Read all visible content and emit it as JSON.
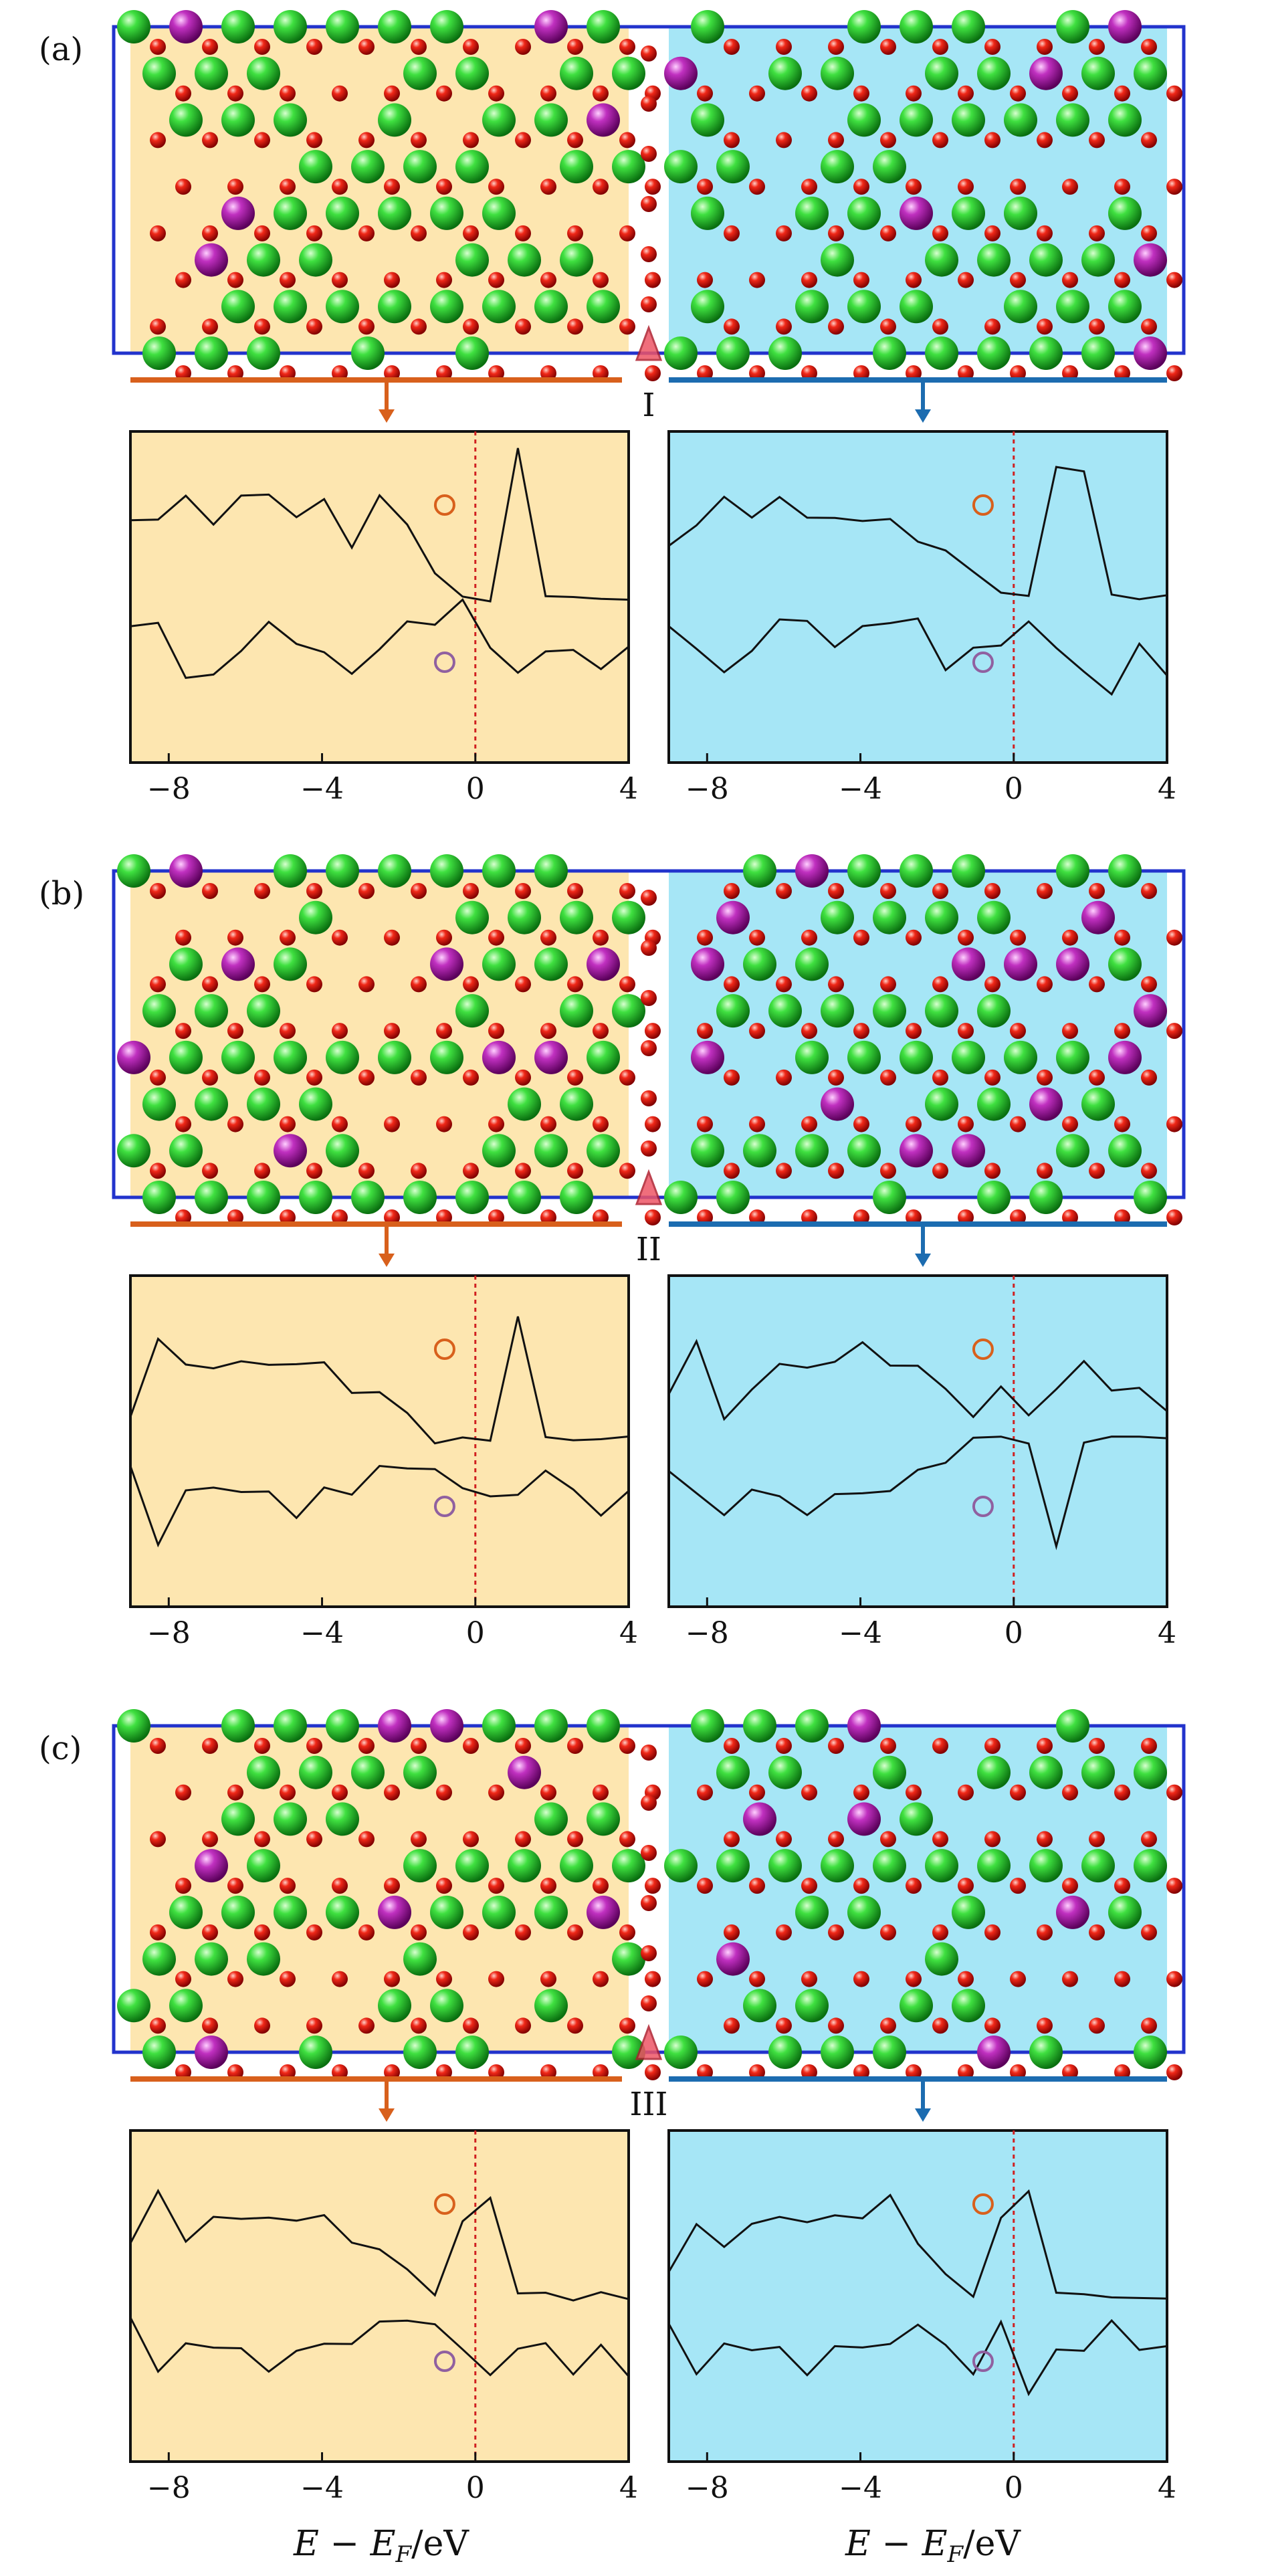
{
  "colors": {
    "left_bg": "#fde6b0",
    "right_bg": "#a6e6f6",
    "cell_border": "#2233cc",
    "orange": "#d8601c",
    "blue": "#1c6cb0",
    "curve": "#111111",
    "fermi": "#d02020",
    "marker": "#ee5566",
    "atom_green": "#22c422",
    "atom_red": "#e01010",
    "atom_purple": "#b020a8"
  },
  "panels": [
    {
      "label": "(a)",
      "interface_label": "I",
      "dos": {
        "xlim": [
          -9,
          4
        ],
        "xticks": [
          -8,
          -4,
          0,
          4
        ],
        "xtick_labels": [
          "−8",
          "−4",
          "0",
          "4"
        ],
        "fermi": 0,
        "left": {
          "up": [
            3,
            3,
            4,
            3,
            4,
            4,
            3,
            4,
            2,
            4,
            3,
            1,
            0,
            0,
            6,
            0,
            0,
            0,
            0
          ],
          "down": [
            -1,
            -1,
            -3,
            -3,
            -2,
            -1,
            -2,
            -2,
            -3,
            -2,
            -1,
            -1,
            0,
            -2,
            -3,
            -2,
            -2,
            -3,
            -2
          ]
        },
        "right": {
          "up": [
            2,
            3,
            4,
            3,
            4,
            3,
            3,
            3,
            3,
            2,
            2,
            1,
            0,
            0,
            5,
            5,
            0,
            0,
            0
          ],
          "down": [
            -1,
            -2,
            -3,
            -2,
            -1,
            -1,
            -2,
            -1,
            -1,
            -1,
            -3,
            -2,
            -2,
            -1,
            -2,
            -3,
            -4,
            -2,
            -3
          ]
        }
      }
    },
    {
      "label": "(b)",
      "interface_label": "II",
      "dos": {
        "xlim": [
          -9,
          4
        ],
        "xticks": [
          -8,
          -4,
          0,
          4
        ],
        "xtick_labels": [
          "−8",
          "−4",
          "0",
          "4"
        ],
        "fermi": 0,
        "left": {
          "up": [
            1,
            4,
            3,
            3,
            3,
            3,
            3,
            3,
            2,
            2,
            1,
            0,
            0,
            0,
            5,
            0,
            0,
            0,
            0
          ],
          "down": [
            -1,
            -4,
            -2,
            -2,
            -2,
            -2,
            -3,
            -2,
            -2,
            -1,
            -1,
            -1,
            -2,
            -2,
            -2,
            -1,
            -2,
            -3,
            -2
          ]
        },
        "right": {
          "up": [
            2,
            4,
            1,
            2,
            3,
            3,
            3,
            4,
            3,
            3,
            2,
            1,
            2,
            1,
            2,
            3,
            2,
            2,
            1
          ],
          "down": [
            -1,
            -2,
            -3,
            -2,
            -2,
            -3,
            -2,
            -2,
            -2,
            -1,
            -1,
            0,
            0,
            0,
            -4,
            0,
            0,
            0,
            0
          ]
        }
      }
    },
    {
      "label": "(c)",
      "interface_label": "III",
      "dos": {
        "xlim": [
          -9,
          4
        ],
        "xticks": [
          -8,
          -4,
          0,
          4
        ],
        "xtick_labels": [
          "−8",
          "−4",
          "0",
          "4"
        ],
        "fermi": 0,
        "left": {
          "up": [
            2,
            4,
            2,
            3,
            3,
            3,
            3,
            3,
            2,
            2,
            1,
            0,
            3,
            4,
            0,
            0,
            0,
            0,
            0
          ],
          "down": [
            -1,
            -3,
            -2,
            -2,
            -2,
            -3,
            -2,
            -2,
            -2,
            -1,
            -1,
            -1,
            -2,
            -3,
            -2,
            -2,
            -3,
            -2,
            -3
          ]
        },
        "right": {
          "up": [
            1,
            3,
            2,
            3,
            3,
            3,
            3,
            3,
            4,
            2,
            1,
            0,
            3,
            4,
            0,
            0,
            0,
            0,
            0
          ],
          "down": [
            -1,
            -3,
            -2,
            -2,
            -2,
            -3,
            -2,
            -2,
            -2,
            -1,
            -2,
            -3,
            -1,
            -4,
            -2,
            -2,
            -1,
            -2,
            -2
          ]
        }
      }
    }
  ],
  "xlabel": "E − E_F/eV",
  "xlabel_main": "E − E",
  "xlabel_sub": "F",
  "xlabel_unit": "/eV"
}
